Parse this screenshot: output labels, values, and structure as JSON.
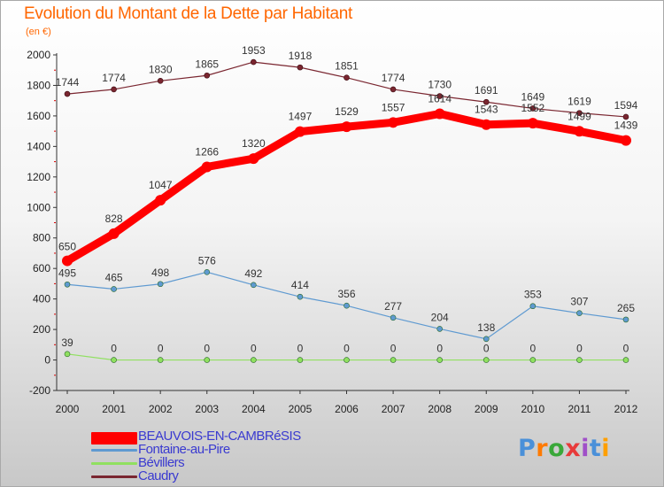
{
  "title": "Evolution du Montant de la Dette par Habitant",
  "subtitle": "(en €)",
  "chart_data": {
    "type": "line",
    "title": "Evolution du Montant de la Dette par Habitant",
    "subtitle": "(en €)",
    "x": [
      "2000",
      "2001",
      "2002",
      "2003",
      "2004",
      "2005",
      "2006",
      "2007",
      "2008",
      "2009",
      "2010",
      "2011",
      "2012"
    ],
    "ylim": [
      -200,
      2000
    ],
    "yticks": [
      "-200",
      "0",
      "200",
      "400",
      "600",
      "800",
      "1000",
      "1200",
      "1400",
      "1600",
      "1800",
      "2000"
    ],
    "grid": false,
    "legend_position": "bottom-left",
    "series": [
      {
        "name": "BEAUVOIS-EN-CAMBRéSIS",
        "color": "#ff0000",
        "values": [
          650,
          828,
          1047,
          1266,
          1320,
          1497,
          1529,
          1557,
          1614,
          1543,
          1552,
          1499,
          1439
        ]
      },
      {
        "name": "Fontaine-au-Pire",
        "color": "#5f9ad1",
        "values": [
          495,
          465,
          498,
          576,
          492,
          414,
          356,
          277,
          204,
          138,
          353,
          307,
          265
        ]
      },
      {
        "name": "Bévillers",
        "color": "#90e060",
        "values": [
          39,
          0,
          0,
          0,
          0,
          0,
          0,
          0,
          0,
          0,
          0,
          0,
          0
        ]
      },
      {
        "name": "Caudry",
        "color": "#7a2630",
        "values": [
          1744,
          1774,
          1830,
          1865,
          1953,
          1918,
          1851,
          1774,
          1730,
          1691,
          1649,
          1619,
          1594
        ]
      }
    ]
  },
  "logo": {
    "letters": [
      "P",
      "r",
      "o",
      "x",
      "i",
      "t",
      "i"
    ],
    "colors": [
      "#4a90d9",
      "#ff7a00",
      "#3aa83a",
      "#e83a3a",
      "#a050c8",
      "#4a90d9",
      "#ff9f00"
    ]
  }
}
